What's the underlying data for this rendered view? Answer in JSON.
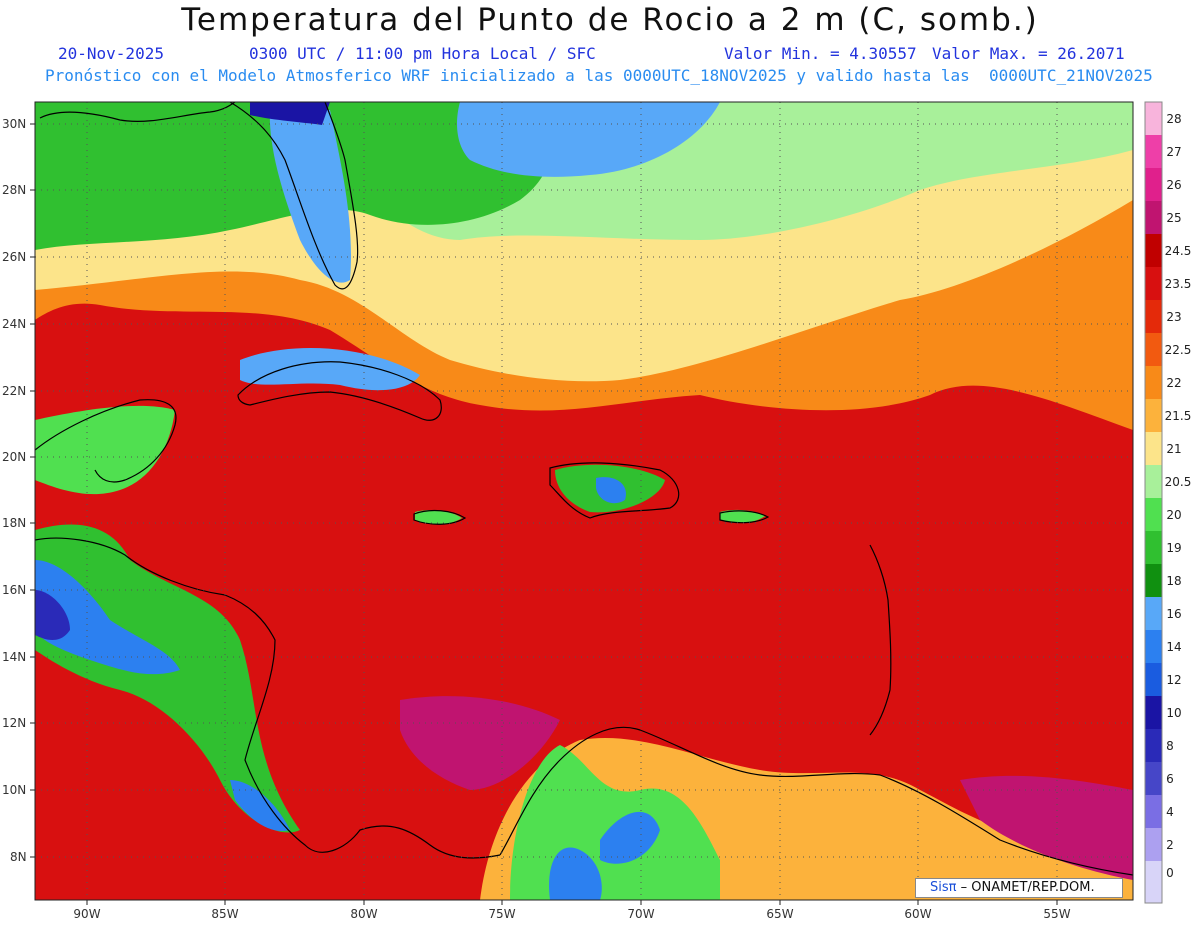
{
  "header": {
    "title": "Temperatura del Punto de Rocio a 2 m (C, somb.)",
    "date": "20-Nov-2025",
    "time": "0300 UTC / 11:00 pm Hora Local / SFC",
    "min_label": "Valor Min. = 4.30557",
    "max_label": "Valor Max. = 26.2071",
    "model_line": "Pronóstico con el Modelo Atmosferico WRF inicializado a las 0000UTC_18NOV2025 y valido hasta las  0000UTC_21NOV2025"
  },
  "axes": {
    "lat_labels": [
      "30N",
      "28N",
      "26N",
      "24N",
      "22N",
      "20N",
      "18N",
      "16N",
      "14N",
      "12N",
      "10N",
      "8N"
    ],
    "lon_labels": [
      "90W",
      "85W",
      "80W",
      "75W",
      "70W",
      "65W",
      "60W",
      "55W"
    ]
  },
  "colorbar": {
    "levels": [
      "28",
      "27",
      "26",
      "25",
      "24.5",
      "23.5",
      "23",
      "22.5",
      "22",
      "21.5",
      "21",
      "20.5",
      "20",
      "19",
      "18",
      "16",
      "14",
      "12",
      "10",
      "8",
      "6",
      "4",
      "2",
      "0"
    ],
    "colors": [
      "#f8b4dc",
      "#ee3fa8",
      "#e0208c",
      "#c01470",
      "#c00000",
      "#d81010",
      "#e42a0a",
      "#f25a10",
      "#f88a18",
      "#fcb23c",
      "#fce48a",
      "#a8f09a",
      "#50e050",
      "#30c030",
      "#109010",
      "#58a8f8",
      "#2c80f0",
      "#1a5ce0",
      "#1a14a4",
      "#2a2ab8",
      "#4646c8",
      "#7a6ee4",
      "#aca0f0",
      "#d8d4f8"
    ]
  },
  "credit": {
    "brand": "Sisπ",
    "org": " – ONAMET/REP.DOM."
  }
}
